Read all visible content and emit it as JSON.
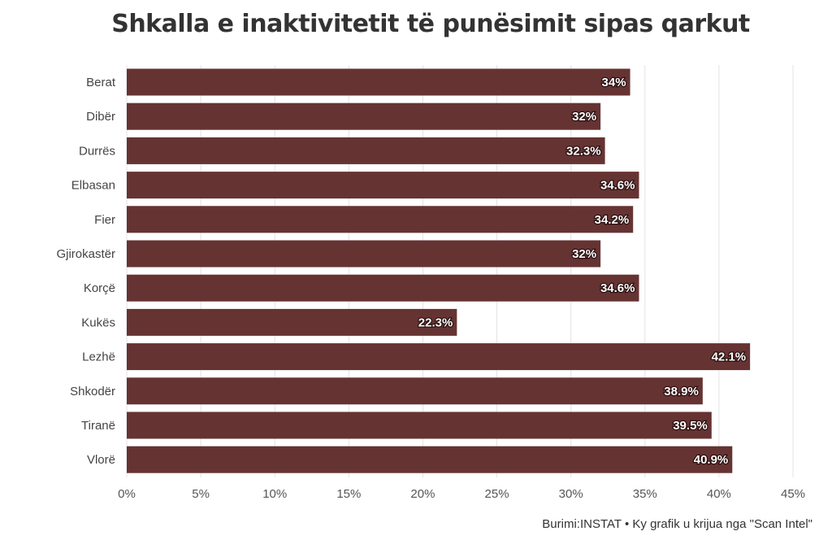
{
  "chart_data": {
    "type": "bar",
    "orientation": "horizontal",
    "title": "Shkalla e inaktivitetit të punësimit sipas qarkut",
    "categories": [
      "Berat",
      "Dibër",
      "Durrës",
      "Elbasan",
      "Fier",
      "Gjirokastër",
      "Korçë",
      "Kukës",
      "Lezhë",
      "Shkodër",
      "Tiranë",
      "Vlorë"
    ],
    "values": [
      34,
      32,
      32.3,
      34.6,
      34.2,
      32,
      34.6,
      22.3,
      42.1,
      38.9,
      39.5,
      40.9
    ],
    "value_labels": [
      "34%",
      "32%",
      "32.3%",
      "34.6%",
      "34.2%",
      "32%",
      "34.6%",
      "22.3%",
      "42.1%",
      "38.9%",
      "39.5%",
      "40.9%"
    ],
    "xlim": [
      0,
      45
    ],
    "x_ticks": [
      0,
      5,
      10,
      15,
      20,
      25,
      30,
      35,
      40,
      45
    ],
    "x_tick_labels": [
      "0%",
      "5%",
      "10%",
      "15%",
      "20%",
      "25%",
      "30%",
      "35%",
      "40%",
      "45%"
    ],
    "xlabel": "",
    "ylabel": "",
    "grid": true,
    "legend": "none",
    "bar_color": "#663333",
    "source": "Burimi:INSTAT • Ky grafik u krijua nga \"Scan Intel\""
  }
}
